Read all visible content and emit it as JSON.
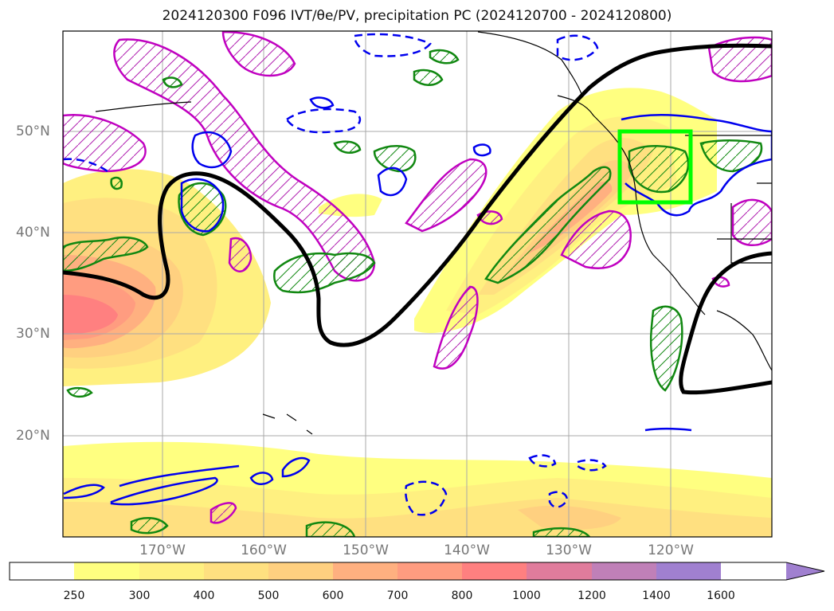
{
  "title": "2024120300 F096 IVT/θe/PV, precipitation PC (2024120700 - 2024120800)",
  "lat_labels": [
    "50°N",
    "40°N",
    "30°N",
    "20°N"
  ],
  "lon_labels": [
    "170°W",
    "160°W",
    "150°W",
    "140°W",
    "130°W",
    "120°W"
  ],
  "colorbar": {
    "ticks": [
      "250",
      "300",
      "400",
      "500",
      "600",
      "700",
      "800",
      "1000",
      "1200",
      "1400",
      "1600"
    ],
    "colors": [
      "#ffffff",
      "#ffff80",
      "#fff080",
      "#ffe080",
      "#ffd080",
      "#ffb080",
      "#ff9c80",
      "#ff8080",
      "#e07c9c",
      "#c080b8",
      "#a080d0"
    ]
  },
  "map": {
    "lon_range": [
      -180,
      -110
    ],
    "lat_range": [
      10,
      60
    ],
    "box": {
      "lon": [
        -125,
        -118
      ],
      "lat": [
        43,
        50
      ],
      "color": "#00ff00"
    }
  }
}
